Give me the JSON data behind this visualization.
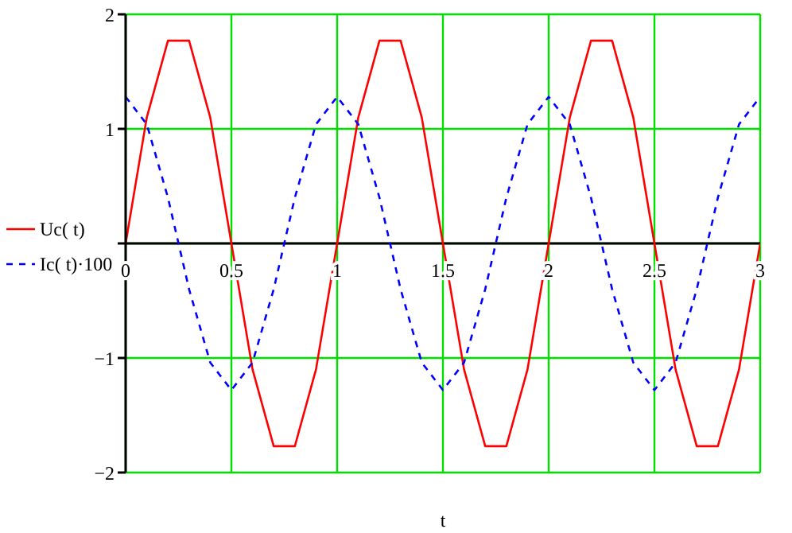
{
  "chart_data": {
    "type": "line",
    "xlabel": "t",
    "x": [
      0,
      0.1,
      0.2,
      0.3,
      0.4,
      0.5,
      0.6,
      0.7,
      0.8,
      0.9,
      1,
      1.1,
      1.2,
      1.3,
      1.4,
      1.5,
      1.6,
      1.7,
      1.8,
      1.9,
      2,
      2.1,
      2.2,
      2.3,
      2.4,
      2.5,
      2.6,
      2.7,
      2.8,
      2.9,
      3
    ],
    "series": [
      {
        "name": "Uc( t)",
        "color": "#ff0000",
        "line_style": "solid",
        "values": [
          0,
          1.1,
          1.77,
          1.77,
          1.1,
          0,
          -1.1,
          -1.77,
          -1.77,
          -1.1,
          0,
          1.1,
          1.77,
          1.77,
          1.1,
          0,
          -1.1,
          -1.77,
          -1.77,
          -1.1,
          0,
          1.1,
          1.77,
          1.77,
          1.1,
          0,
          -1.1,
          -1.77,
          -1.77,
          -1.1,
          0
        ]
      },
      {
        "name": "Ic( t)·100",
        "color": "#0000ff",
        "line_style": "dashed",
        "values": [
          1.28,
          1.04,
          0.4,
          -0.4,
          -1.04,
          -1.28,
          -1.04,
          -0.4,
          0.4,
          1.04,
          1.28,
          1.04,
          0.4,
          -0.4,
          -1.04,
          -1.28,
          -1.04,
          -0.4,
          0.4,
          1.04,
          1.28,
          1.04,
          0.4,
          -0.4,
          -1.04,
          -1.28,
          -1.04,
          -0.4,
          0.4,
          1.04,
          1.28
        ]
      }
    ],
    "xlim": [
      0,
      3
    ],
    "xticks": [
      0,
      0.5,
      1,
      1.5,
      2,
      2.5,
      3
    ],
    "ylim": [
      -2,
      2
    ],
    "yticks": [
      -2,
      -1,
      {
        "value": 0,
        "label": null
      },
      1,
      2
    ],
    "grid": true,
    "legend": "left",
    "marker": "none"
  }
}
